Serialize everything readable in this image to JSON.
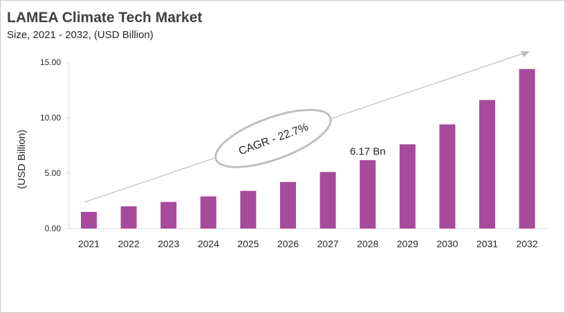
{
  "chart_data": {
    "type": "bar",
    "title": "LAMEA Climate Tech Market",
    "subtitle": "Size, 2021 - 2032, (USD Billion)",
    "xlabel": "",
    "ylabel": "(USD Billion)",
    "categories": [
      "2021",
      "2022",
      "2023",
      "2024",
      "2025",
      "2026",
      "2027",
      "2028",
      "2029",
      "2030",
      "2031",
      "2032"
    ],
    "values": [
      1.5,
      2.0,
      2.4,
      2.9,
      3.4,
      4.2,
      5.1,
      6.17,
      7.6,
      9.4,
      11.6,
      14.4
    ],
    "ylim": [
      0,
      15
    ],
    "yticks": [
      "0.00",
      "5.00",
      "10.00",
      "15.00"
    ],
    "ytick_values": [
      0,
      5,
      10,
      15
    ],
    "grid": false,
    "bar_color": "#A84A9C",
    "data_label": {
      "category": "2028",
      "text": "6.17 Bn"
    },
    "annotation": "CAGR - 22.7%"
  }
}
